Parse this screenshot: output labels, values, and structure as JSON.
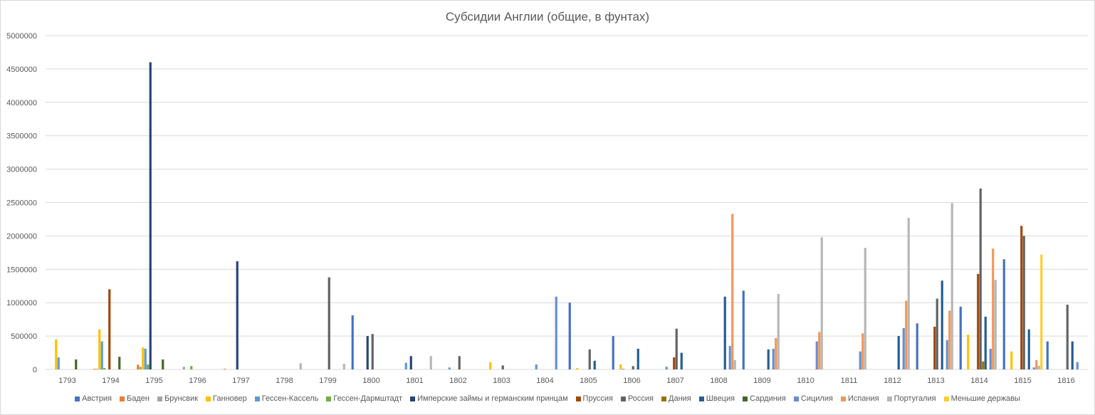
{
  "chart_data": {
    "type": "bar",
    "title": "Субсидии Англии (общие, в фунтах)",
    "xlabel": "",
    "ylabel": "",
    "ylim": [
      0,
      5000000
    ],
    "yticks": [
      "0",
      "500000",
      "1000000",
      "1500000",
      "2000000",
      "2500000",
      "3000000",
      "3500000",
      "4000000",
      "4500000",
      "5000000"
    ],
    "grid": true,
    "legend_position": "bottom",
    "categories": [
      "1793",
      "1794",
      "1795",
      "1796",
      "1797",
      "1798",
      "1799",
      "1800",
      "1801",
      "1802",
      "1803",
      "1804",
      "1805",
      "1806",
      "1807",
      "1808",
      "1809",
      "1810",
      "1811",
      "1812",
      "1813",
      "1814",
      "1815",
      "1816"
    ],
    "series": [
      {
        "name": "Австрия",
        "color": "#4472C4",
        "values": [
          0,
          0,
          0,
          0,
          0,
          0,
          0,
          810000,
          0,
          0,
          0,
          0,
          1000000,
          500000,
          0,
          0,
          1180000,
          0,
          0,
          0,
          690000,
          940000,
          1650000,
          420000
        ]
      },
      {
        "name": "Баден",
        "color": "#ED7D31",
        "values": [
          0,
          10000,
          70000,
          0,
          10000,
          0,
          0,
          0,
          0,
          0,
          0,
          0,
          0,
          0,
          0,
          0,
          0,
          0,
          0,
          0,
          0,
          0,
          0,
          0
        ]
      },
      {
        "name": "Брунсвик",
        "color": "#A5A5A5",
        "values": [
          0,
          10000,
          40000,
          40000,
          0,
          0,
          0,
          0,
          0,
          0,
          0,
          0,
          0,
          0,
          0,
          0,
          0,
          0,
          0,
          0,
          0,
          0,
          0,
          0
        ]
      },
      {
        "name": "Ганновер",
        "color": "#FFC000",
        "values": [
          450000,
          600000,
          330000,
          0,
          0,
          0,
          0,
          0,
          0,
          0,
          110000,
          0,
          20000,
          75000,
          0,
          0,
          0,
          0,
          0,
          0,
          0,
          520000,
          270000,
          0
        ]
      },
      {
        "name": "Гессен-Кассель",
        "color": "#5B9BD5",
        "values": [
          180000,
          420000,
          310000,
          0,
          0,
          0,
          0,
          0,
          100000,
          30000,
          0,
          75000,
          0,
          10000,
          40000,
          0,
          0,
          0,
          0,
          0,
          0,
          0,
          0,
          0
        ]
      },
      {
        "name": "Гессен-Дармштадт",
        "color": "#70AD47",
        "values": [
          0,
          20000,
          75000,
          50000,
          0,
          0,
          0,
          0,
          0,
          0,
          0,
          0,
          0,
          0,
          0,
          0,
          0,
          0,
          0,
          0,
          0,
          0,
          0,
          0
        ]
      },
      {
        "name": "Имперские займы и германским принцам",
        "color": "#264478",
        "values": [
          0,
          0,
          4600000,
          0,
          1620000,
          0,
          0,
          500000,
          200000,
          0,
          0,
          0,
          0,
          0,
          0,
          0,
          0,
          0,
          0,
          0,
          0,
          0,
          0,
          0
        ]
      },
      {
        "name": "Пруссия",
        "color": "#9E480E",
        "values": [
          0,
          1200000,
          0,
          0,
          0,
          0,
          0,
          0,
          0,
          0,
          0,
          0,
          0,
          0,
          180000,
          0,
          0,
          0,
          0,
          0,
          640000,
          1430000,
          2150000,
          0
        ]
      },
      {
        "name": "Россия",
        "color": "#636363",
        "values": [
          0,
          0,
          0,
          0,
          0,
          0,
          1380000,
          530000,
          0,
          200000,
          60000,
          0,
          300000,
          50000,
          610000,
          0,
          0,
          0,
          0,
          0,
          1060000,
          2710000,
          2000000,
          970000
        ]
      },
      {
        "name": "Дания",
        "color": "#997300",
        "values": [
          0,
          0,
          0,
          0,
          0,
          0,
          0,
          0,
          0,
          0,
          0,
          0,
          0,
          0,
          0,
          0,
          0,
          0,
          0,
          0,
          0,
          120000,
          0,
          0
        ]
      },
      {
        "name": "Швеция",
        "color": "#255E91",
        "values": [
          0,
          0,
          0,
          0,
          0,
          0,
          0,
          0,
          0,
          0,
          0,
          0,
          130000,
          310000,
          250000,
          1090000,
          300000,
          0,
          0,
          500000,
          1330000,
          790000,
          600000,
          420000
        ]
      },
      {
        "name": "Сардиния",
        "color": "#43682B",
        "values": [
          150000,
          190000,
          150000,
          0,
          0,
          0,
          0,
          0,
          0,
          0,
          0,
          0,
          0,
          0,
          0,
          0,
          0,
          0,
          0,
          0,
          0,
          0,
          0,
          0
        ]
      },
      {
        "name": "Сицилия",
        "color": "#698ED0",
        "values": [
          0,
          0,
          0,
          0,
          0,
          0,
          0,
          0,
          0,
          0,
          0,
          1090000,
          0,
          0,
          0,
          350000,
          310000,
          420000,
          270000,
          620000,
          440000,
          310000,
          30000,
          110000
        ]
      },
      {
        "name": "Испания",
        "color": "#F1975A",
        "values": [
          0,
          0,
          0,
          0,
          0,
          0,
          0,
          0,
          0,
          0,
          0,
          0,
          0,
          0,
          0,
          2330000,
          470000,
          560000,
          540000,
          1030000,
          880000,
          1810000,
          140000,
          0
        ]
      },
      {
        "name": "Португалия",
        "color": "#B7B7B7",
        "values": [
          0,
          0,
          0,
          0,
          0,
          95000,
          85000,
          0,
          200000,
          0,
          0,
          0,
          0,
          0,
          0,
          140000,
          1130000,
          1980000,
          1820000,
          2270000,
          2490000,
          1340000,
          55000,
          0
        ]
      },
      {
        "name": "Меньшие державы",
        "color": "#FFCD33",
        "values": [
          0,
          0,
          0,
          0,
          0,
          0,
          0,
          0,
          0,
          0,
          0,
          0,
          0,
          0,
          0,
          0,
          0,
          0,
          0,
          0,
          0,
          0,
          1720000,
          0
        ]
      }
    ]
  }
}
